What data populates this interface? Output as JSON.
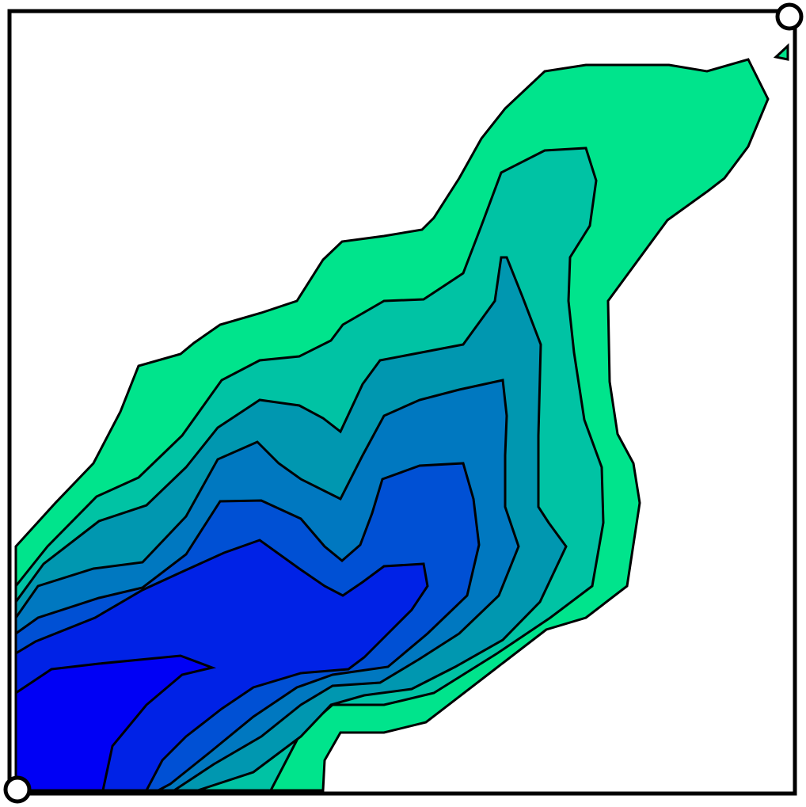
{
  "contour_plot": {
    "levels": 7,
    "fill_colors": [
      "#0000f5",
      "#0022e6",
      "#0050d4",
      "#0078c0",
      "#0097b0",
      "#00c3a4",
      "#00e48c"
    ],
    "edge_color": "#000000",
    "background": "#ffffff",
    "handles": [
      "top-right-handle",
      "bottom-left-handle"
    ]
  }
}
